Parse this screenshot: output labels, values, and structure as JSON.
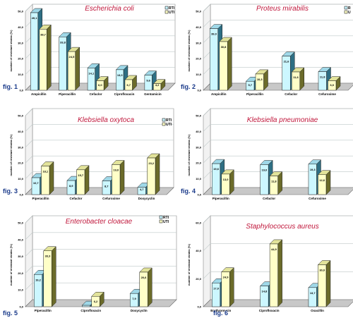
{
  "colors": {
    "title": "#c0183c",
    "fig_label": "#1a3a8a",
    "rti_face": "#ccf7ff",
    "rti_top": "#9fd8e8",
    "rti_side": "#2e6f84",
    "uti_face": "#ffffc8",
    "uti_top": "#e2e39a",
    "uti_side": "#6b6b2a",
    "grid": "#bfc8c8",
    "floor": "#c8c8c8",
    "wall": "#ffffff"
  },
  "chart_data": [
    {
      "type": "bar",
      "title": "Escherichia coli",
      "fig": "fig. 1",
      "ylabel": "number of resistant strains (%)",
      "ylim": [
        0,
        50
      ],
      "ytick_labels": [
        "0,0",
        "10,0",
        "20,0",
        "30,0",
        "40,0",
        "50,0"
      ],
      "legend": [
        "RTI",
        "UTI"
      ],
      "legend_position": "top-right",
      "categories": [
        "Ampicillin",
        "Piperacillin",
        "Cefaclor",
        "Ciprofloxacin",
        "Gentamicin"
      ],
      "series": [
        {
          "name": "RTI",
          "values": [
            49.1,
            33.8,
            14.1,
            13.0,
            9.6
          ],
          "labels": [
            "49,1",
            "33,8",
            "14,1",
            "13,0",
            "9,6"
          ]
        },
        {
          "name": "UTI",
          "values": [
            38.7,
            24.5,
            6.0,
            6.7,
            4.2
          ],
          "labels": [
            "38,7",
            "24,5",
            "6,0",
            "6,7",
            "4,2"
          ]
        }
      ]
    },
    {
      "type": "bar",
      "title": "Proteus mirabilis",
      "fig": "fig. 2",
      "ylabel": "number of resistant strains (%)",
      "ylim": [
        0,
        50
      ],
      "ytick_labels": [
        "0,0",
        "10,0",
        "20,0",
        "30,0",
        "40,0",
        "50,0"
      ],
      "legend": [
        "R",
        "U"
      ],
      "legend_position": "top-right",
      "categories": [
        "Ampicillin",
        "Piperacillin",
        "Cefaclor",
        "Cefuroxime"
      ],
      "series": [
        {
          "name": "R",
          "values": [
            39.0,
            5.7,
            21.6,
            11.8
          ],
          "labels": [
            "39,0",
            "5,7",
            "21,6",
            "11,8"
          ]
        },
        {
          "name": "U",
          "values": [
            30.8,
            10.3,
            11.6,
            6.0
          ],
          "labels": [
            "30,8",
            "10,3",
            "11,6",
            "6,0"
          ]
        }
      ]
    },
    {
      "type": "bar",
      "title": "Klebsiella oxytoca",
      "fig": "fig. 3",
      "ylabel": "number of resistant strains (%)",
      "ylim": [
        0,
        50
      ],
      "ytick_labels": [
        "0,0",
        "10,0",
        "20,0",
        "30,0",
        "40,0",
        "50,0"
      ],
      "legend": [
        "RTI",
        "UTI"
      ],
      "legend_position": "top-right",
      "categories": [
        "Piperacillin",
        "Cefaclor",
        "Cefuroxime",
        "Doxycyclin"
      ],
      "series": [
        {
          "name": "RTI",
          "values": [
            10.7,
            8.9,
            8.7,
            4.7
          ],
          "labels": [
            "10,7",
            "8,9",
            "8,7",
            "4,7"
          ]
        },
        {
          "name": "UTI",
          "values": [
            18.1,
            15.7,
            19.0,
            23.2
          ],
          "labels": [
            "18,1",
            "15,7",
            "19,0",
            "23,2"
          ]
        }
      ]
    },
    {
      "type": "bar",
      "title": "Klebsiella pneumoniae",
      "fig": "fig. 4",
      "ylabel": "number of resistant strains (%)",
      "ylim": [
        0,
        50
      ],
      "ytick_labels": [
        "0,0",
        "10,0",
        "20,0",
        "30,0",
        "40,0",
        "50,0"
      ],
      "legend": [],
      "legend_position": "none",
      "categories": [
        "Piperacillin",
        "Cefaclor",
        "Cefuroxime"
      ],
      "series": [
        {
          "name": "",
          "values": [
            19.6,
            19.0,
            19.3
          ],
          "labels": [
            "19,6",
            "19,0",
            "19,3"
          ]
        },
        {
          "name": "",
          "values": [
            13.0,
            11.8,
            12.6
          ],
          "labels": [
            "13,0",
            "11,8",
            "12,6"
          ]
        }
      ]
    },
    {
      "type": "bar",
      "title": "Enterobacter cloacae",
      "fig": "fig. 5",
      "ylabel": "number of resistant strains (%)",
      "ylim": [
        0,
        50
      ],
      "ytick_labels": [
        "0,0",
        "10,0",
        "20,0",
        "30,0",
        "40,0",
        "50,0"
      ],
      "legend": [
        "RTI",
        "UTI"
      ],
      "legend_position": "top-right",
      "categories": [
        "Piperacillin",
        "Ciprofloxacin",
        "Doxycyclin"
      ],
      "series": [
        {
          "name": "RTI",
          "values": [
            19.2,
            0.8,
            7.9
          ],
          "labels": [
            "19,2",
            "",
            "7,9"
          ]
        },
        {
          "name": "UTI",
          "values": [
            33.3,
            6.2,
            20.6
          ],
          "labels": [
            "33,3",
            "6,2",
            "20,6"
          ]
        }
      ]
    },
    {
      "type": "bar",
      "title": "Staphylococcus aureus",
      "fig": "fig. 6",
      "ylabel": "number of resistant strains (%)",
      "ylim": [
        0,
        60
      ],
      "ytick_labels": [
        "0,0",
        "20,0",
        "40,0",
        "60,0"
      ],
      "legend": [],
      "legend_position": "none",
      "categories": [
        "Erythromycin",
        "Ciprofloxacin",
        "Oxacillin"
      ],
      "series": [
        {
          "name": "",
          "values": [
            17.0,
            14.8,
            13.7
          ],
          "labels": [
            "17,0",
            "14,8",
            "13,7"
          ]
        },
        {
          "name": "",
          "values": [
            24.9,
            44.9,
            30.0
          ],
          "labels": [
            "24,9",
            "44,9",
            "30,0"
          ]
        }
      ]
    }
  ]
}
